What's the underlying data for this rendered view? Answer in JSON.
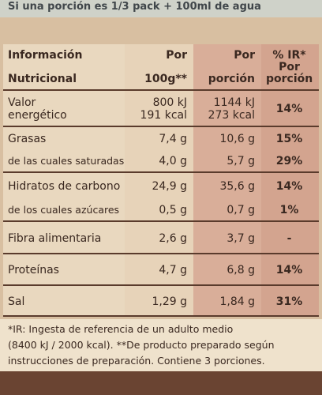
{
  "top_note": "Si una porción es 1/3 pack + 100ml de agua",
  "table": {
    "header": [
      [
        "Información",
        "Nutricional"
      ],
      [
        "Por",
        "100g**"
      ],
      [
        "Por",
        "porción"
      ],
      [
        "% IR*",
        "Por",
        "porción"
      ]
    ],
    "rows": [
      [
        [
          "Valor",
          "energético"
        ],
        [
          "800 kJ",
          "191 kcal"
        ],
        [
          "1144 kJ",
          "273 kcal"
        ],
        [
          "14%"
        ]
      ],
      [
        [
          "Grasas",
          "de las cuales saturadas"
        ],
        [
          "7,4 g",
          "4,0 g"
        ],
        [
          "10,6 g",
          "5,7 g"
        ],
        [
          "15%",
          "29%"
        ]
      ],
      [
        [
          "Hidratos de carbono",
          "de los cuales azúcares"
        ],
        [
          "24,9 g",
          "0,5 g"
        ],
        [
          "35,6 g",
          "0,7 g"
        ],
        [
          "14%",
          "1%"
        ]
      ],
      [
        [
          "Fibra alimentaria"
        ],
        [
          "2,6 g"
        ],
        [
          "3,7 g"
        ],
        [
          "-"
        ]
      ],
      [
        [
          "Proteínas"
        ],
        [
          "4,7 g"
        ],
        [
          "6,8 g"
        ],
        [
          "14%"
        ]
      ],
      [
        [
          "Sal"
        ],
        [
          "1,29 g"
        ],
        [
          "1,84 g"
        ],
        [
          "31%"
        ]
      ]
    ]
  },
  "footnote": [
    "*IR: Ingesta de referencia de un adulto medio",
    "(8400 kJ / 2000 kcal). **De producto preparado según",
    "instrucciones de preparación. Contiene 3 porciones."
  ]
}
